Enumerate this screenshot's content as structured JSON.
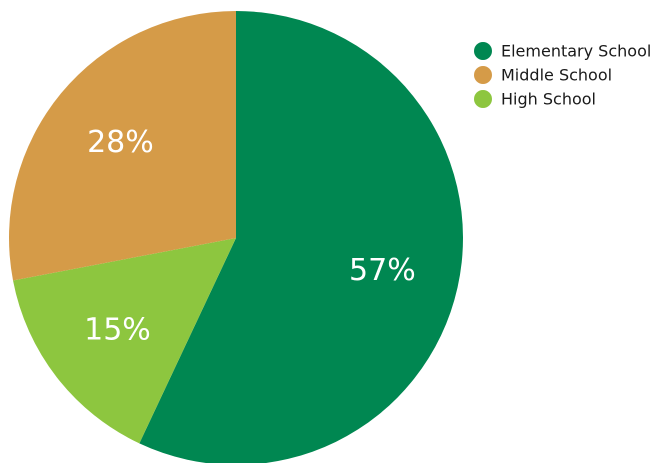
{
  "chart_data": {
    "type": "pie",
    "title": "",
    "legend_position": "top-right",
    "start_angle_deg": 0,
    "direction": "clockwise",
    "slices": [
      {
        "label": "Elementary School",
        "value": 57,
        "display": "57%",
        "color": "#008751"
      },
      {
        "label": "High School",
        "value": 15,
        "display": "15%",
        "color": "#8dc63f"
      },
      {
        "label": "Middle School",
        "value": 28,
        "display": "28%",
        "color": "#d59b48"
      }
    ],
    "legend": [
      {
        "label": "Elementary School",
        "color": "#008751"
      },
      {
        "label": "Middle School",
        "color": "#d59b48"
      },
      {
        "label": "High School",
        "color": "#8dc63f"
      }
    ]
  }
}
